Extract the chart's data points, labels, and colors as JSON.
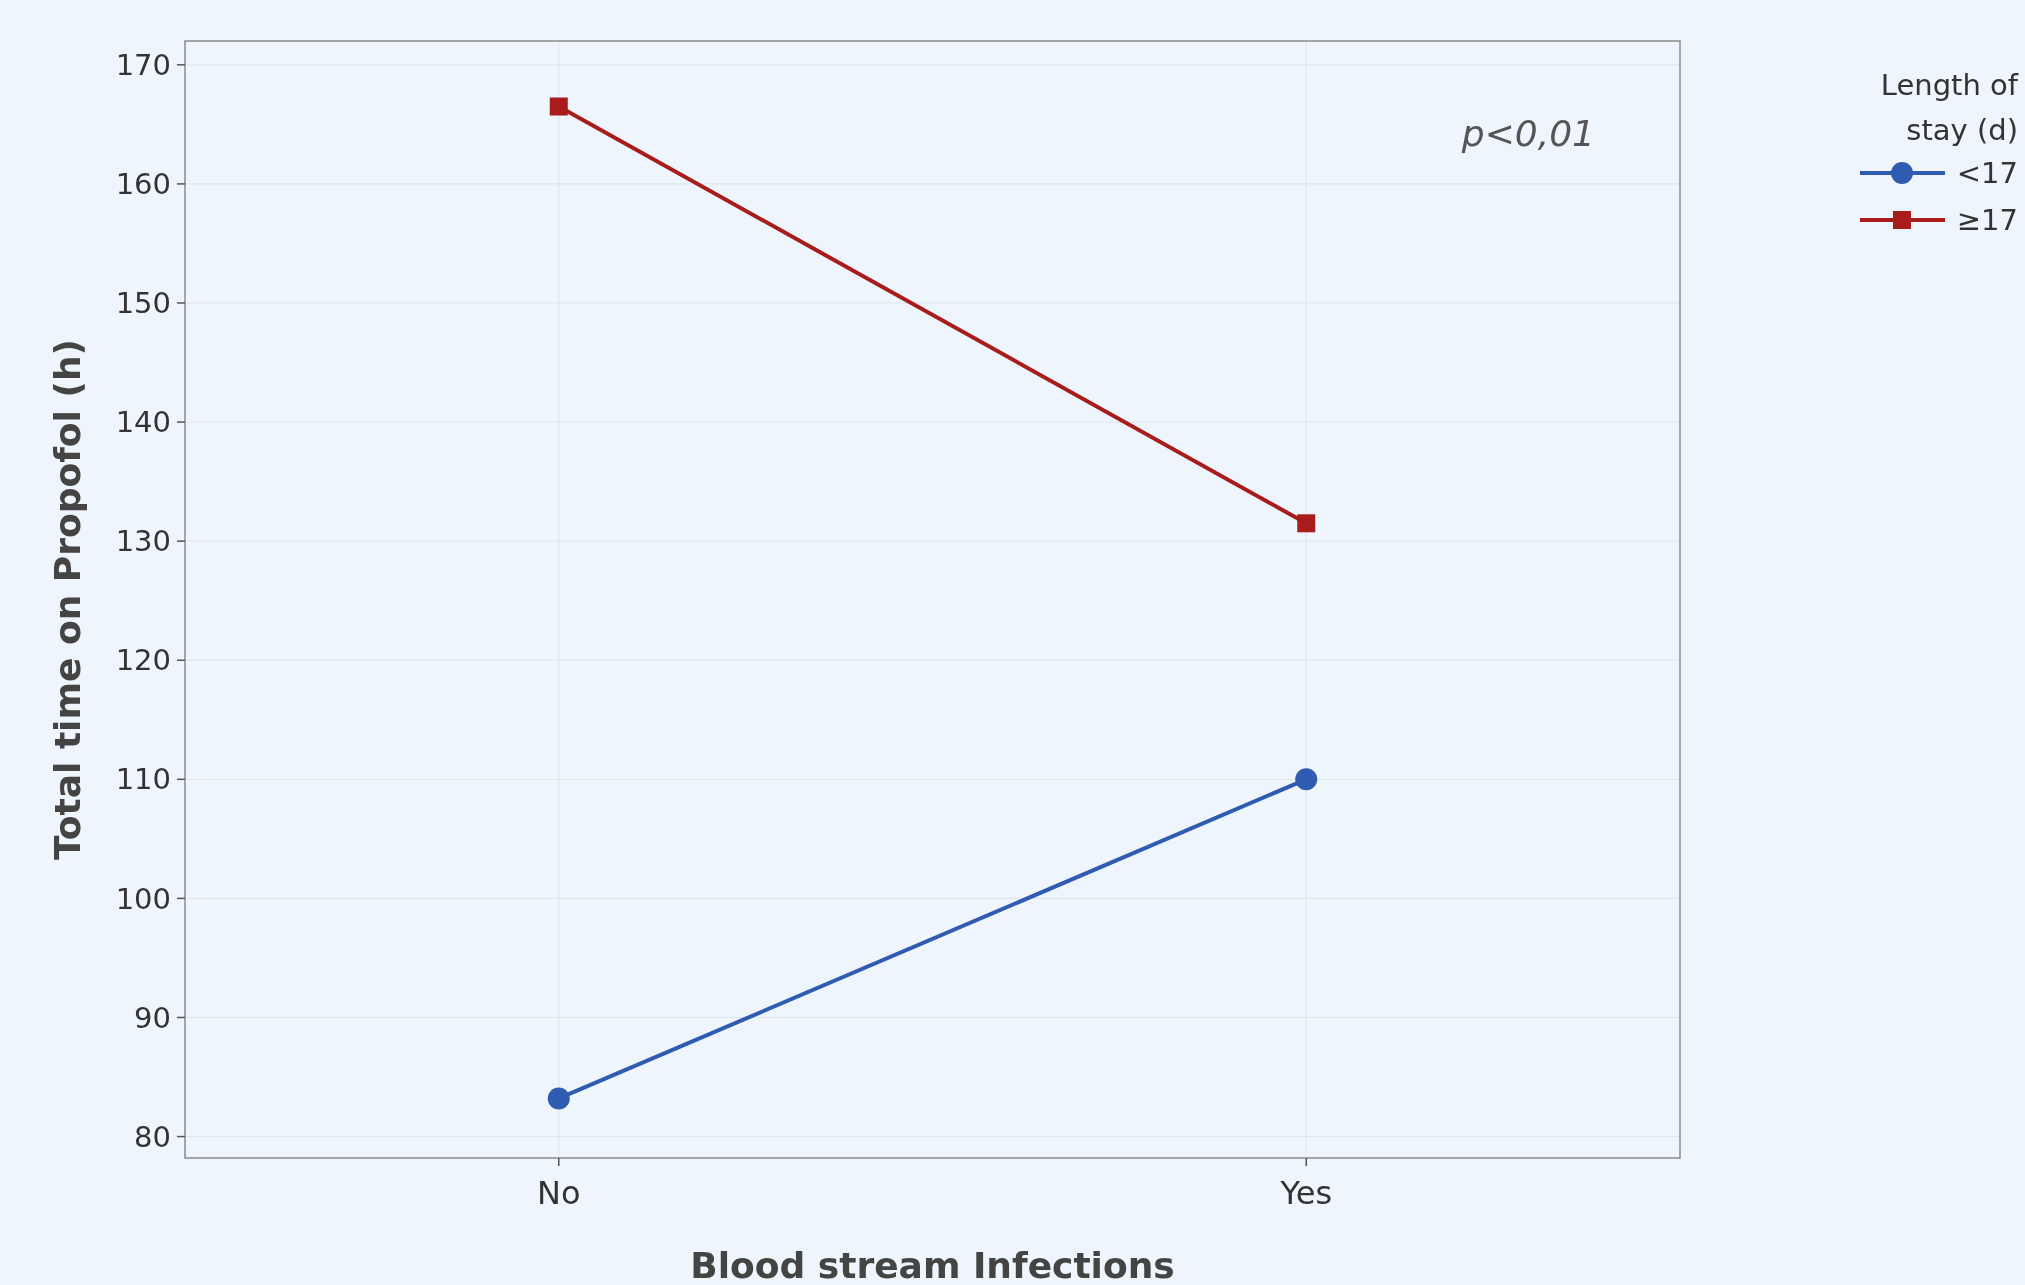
{
  "chart_data": {
    "type": "line",
    "xlabel": "Blood stream Infections",
    "ylabel": "Total time on Propofol (h)",
    "legend_title": "Length of stay (d)",
    "categories": [
      "No",
      "Yes"
    ],
    "series": [
      {
        "name": "<17",
        "color": "#2f5bb0",
        "marker": "circle",
        "values": [
          83.2,
          110
        ]
      },
      {
        "name": "≥17",
        "color": "#a81c1c",
        "marker": "square",
        "values": [
          166.5,
          131.5
        ]
      }
    ],
    "ylim": [
      78.2,
      172
    ],
    "yticks": [
      80,
      90,
      100,
      110,
      120,
      130,
      140,
      150,
      160,
      170
    ],
    "grid": true,
    "legend": "top right",
    "annotations": [
      "p<0,01"
    ]
  }
}
